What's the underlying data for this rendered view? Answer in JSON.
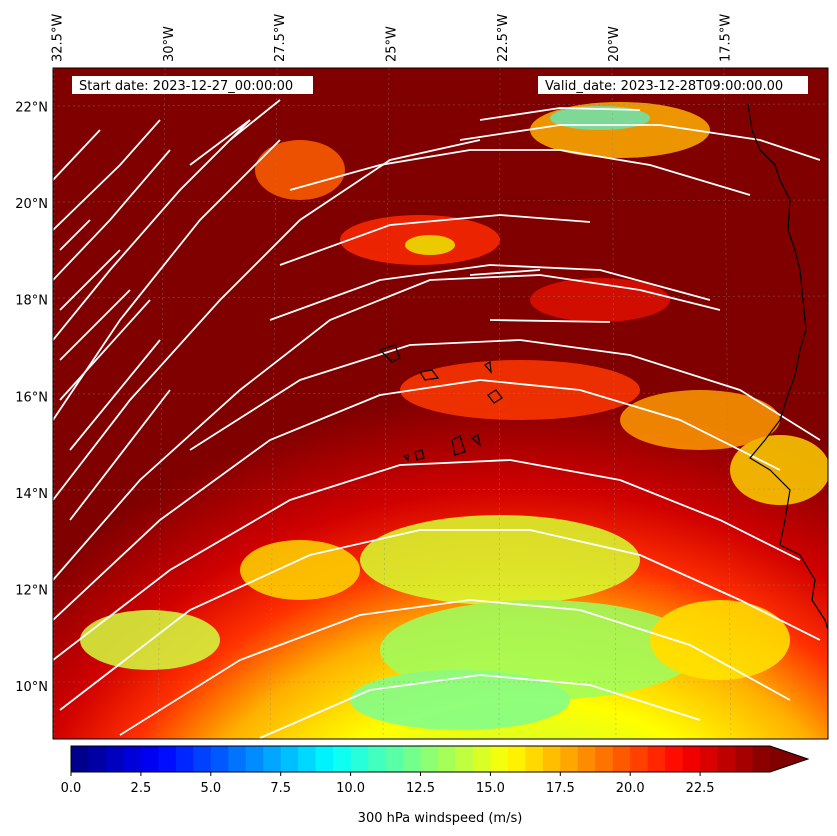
{
  "map": {
    "start_date": "Start date: 2023-12-27_00:00:00",
    "valid_date": "Valid_date: 2023-12-28T09:00:00.00",
    "lon_labels": [
      {
        "lon": -32.5,
        "label": "32.5°W"
      },
      {
        "lon": -30.0,
        "label": "30°W"
      },
      {
        "lon": -27.5,
        "label": "27.5°W"
      },
      {
        "lon": -25.0,
        "label": "25°W"
      },
      {
        "lon": -22.5,
        "label": "22.5°W"
      },
      {
        "lon": -20.0,
        "label": "20°W"
      },
      {
        "lon": -17.5,
        "label": "17.5°W"
      }
    ],
    "lat_labels": [
      {
        "lat": 22,
        "label": "22°N"
      },
      {
        "lat": 20,
        "label": "20°N"
      },
      {
        "lat": 18,
        "label": "18°N"
      },
      {
        "lat": 16,
        "label": "16°N"
      },
      {
        "lat": 14,
        "label": "14°N"
      },
      {
        "lat": 12,
        "label": "12°N"
      },
      {
        "lat": 10,
        "label": "10°N"
      }
    ],
    "extent": {
      "lon_min": -32.6,
      "lon_max": -15.2,
      "lat_min": 8.9,
      "lat_max": 22.8
    },
    "field": "300 hPa windspeed",
    "streamline_color": "#ffffff",
    "coast_color": "#000000"
  },
  "colorbar": {
    "label": "300 hPa windspeed (m/s)",
    "vmin": 0.0,
    "vmax": 25.0,
    "extend": "max",
    "colormap": "jet",
    "ticks": [
      {
        "value": 0.0,
        "label": "0.0"
      },
      {
        "value": 2.5,
        "label": "2.5"
      },
      {
        "value": 5.0,
        "label": "5.0"
      },
      {
        "value": 7.5,
        "label": "7.5"
      },
      {
        "value": 10.0,
        "label": "10.0"
      },
      {
        "value": 12.5,
        "label": "12.5"
      },
      {
        "value": 15.0,
        "label": "15.0"
      },
      {
        "value": 17.5,
        "label": "17.5"
      },
      {
        "value": 20.0,
        "label": "20.0"
      },
      {
        "value": 22.5,
        "label": "22.5"
      }
    ]
  }
}
